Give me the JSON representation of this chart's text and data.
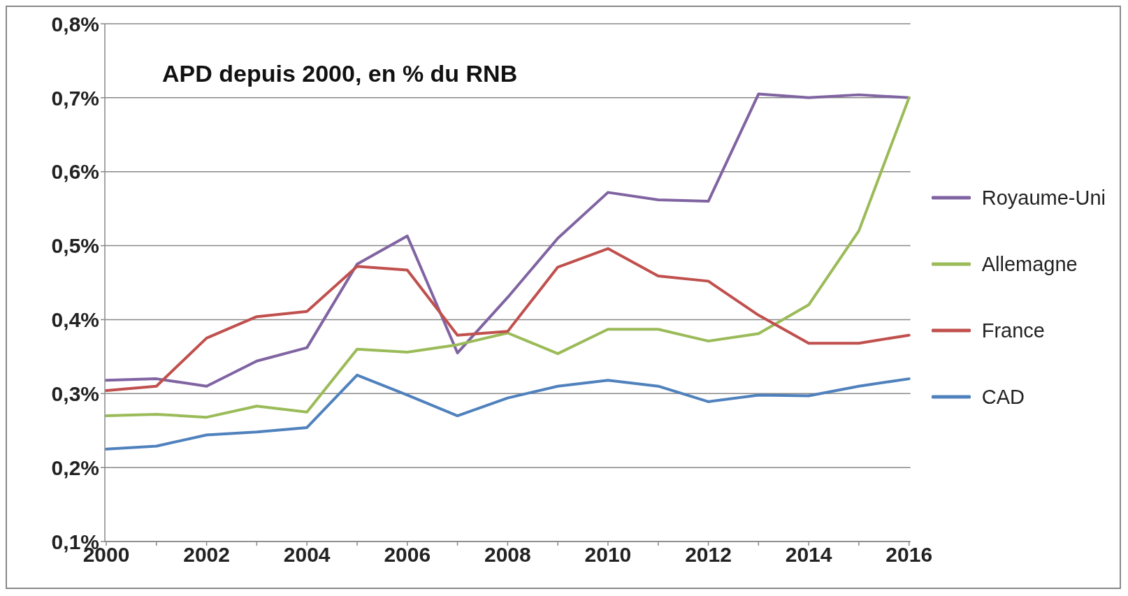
{
  "chart_data": {
    "type": "line",
    "title": "APD depuis 2000, en % du RNB",
    "categories": [
      "2000",
      null,
      "2002",
      null,
      "2004",
      null,
      "2006",
      null,
      "2008",
      null,
      "2010",
      null,
      "2012",
      null,
      "2014",
      null,
      "2016"
    ],
    "series": [
      {
        "name": "Royaume-Uni",
        "color": "#8064a2",
        "values": [
          0.318,
          0.32,
          0.31,
          0.344,
          0.362,
          0.475,
          0.513,
          0.355,
          0.43,
          0.51,
          0.572,
          0.562,
          0.56,
          0.705,
          0.7,
          0.704,
          0.7
        ]
      },
      {
        "name": "Allemagne",
        "color": "#9bbb59",
        "values": [
          0.27,
          0.272,
          0.268,
          0.283,
          0.275,
          0.36,
          0.356,
          0.366,
          0.382,
          0.354,
          0.387,
          0.387,
          0.371,
          0.381,
          0.42,
          0.52,
          0.7
        ]
      },
      {
        "name": "France",
        "color": "#c0504d",
        "values": [
          0.304,
          0.31,
          0.375,
          0.404,
          0.411,
          0.472,
          0.467,
          0.379,
          0.384,
          0.471,
          0.496,
          0.459,
          0.452,
          0.406,
          0.368,
          0.368,
          0.379
        ]
      },
      {
        "name": "CAD",
        "color": "#4f81bd",
        "values": [
          0.225,
          0.229,
          0.244,
          0.248,
          0.254,
          0.325,
          0.298,
          0.27,
          0.294,
          0.31,
          0.318,
          0.31,
          0.289,
          0.298,
          0.297,
          0.31,
          0.32
        ]
      }
    ],
    "ylim": [
      0.1,
      0.8
    ],
    "yticks": [
      {
        "value": 0.1,
        "label": "0,1%"
      },
      {
        "value": 0.2,
        "label": "0,2%"
      },
      {
        "value": 0.3,
        "label": "0,3%"
      },
      {
        "value": 0.4,
        "label": "0,4%"
      },
      {
        "value": 0.5,
        "label": "0,5%"
      },
      {
        "value": 0.6,
        "label": "0,6%"
      },
      {
        "value": 0.7,
        "label": "0,7%"
      },
      {
        "value": 0.8,
        "label": "0,8%"
      }
    ],
    "grid": "y",
    "legend": "right",
    "marker": "none",
    "line_style": "solid"
  }
}
